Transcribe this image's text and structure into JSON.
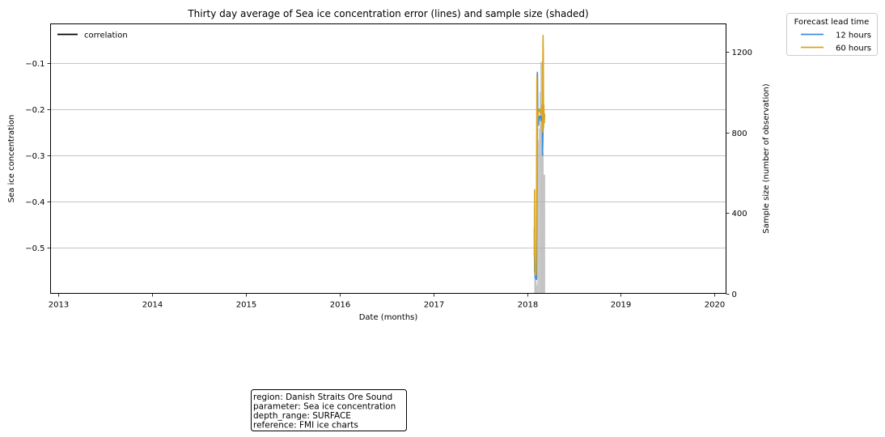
{
  "chart_data": {
    "type": "line",
    "title": "Thirty day average of Sea ice concentration error (lines) and sample size (shaded)",
    "xlabel": "Date (months)",
    "ylabel": "Sea ice concentration",
    "y2label": "Sample size (number of observation)",
    "xlim": [
      "2012-12-01",
      "2020-02-15"
    ],
    "ylim": [
      -0.6,
      -0.015
    ],
    "y2lim": [
      0,
      1340
    ],
    "x_ticks": [
      "2013-01-01",
      "2014-01-01",
      "2015-01-01",
      "2016-01-01",
      "2017-01-01",
      "2018-01-01",
      "2019-01-01",
      "2020-01-01"
    ],
    "x_tick_labels": [
      "2013",
      "2014",
      "2015",
      "2016",
      "2017",
      "2018",
      "2019",
      "2020"
    ],
    "y_ticks": [
      -0.5,
      -0.4,
      -0.3,
      -0.2,
      -0.1
    ],
    "y_tick_labels": [
      "−0.5",
      "−0.4",
      "−0.3",
      "−0.2",
      "−0.1"
    ],
    "y2_ticks": [
      0,
      400,
      800,
      1200
    ],
    "y2_tick_labels": [
      "0",
      "400",
      "800",
      "1200"
    ],
    "grid": "horizontal",
    "correlation_legend": {
      "label": "correlation",
      "color": "#000000",
      "placement": "upper-left"
    },
    "legend": {
      "title": "Forecast lead time",
      "placement": "outside-top-right",
      "entries": [
        {
          "label": "12 hours",
          "color": "#3b8ee0"
        },
        {
          "label": "60 hours",
          "color": "#d9a521"
        }
      ]
    },
    "series": [
      {
        "name": "12 hours",
        "color": "#3b8ee0",
        "x": [
          "2018-01-29",
          "2018-01-30",
          "2018-02-01",
          "2018-02-03",
          "2018-02-05",
          "2018-02-06",
          "2018-02-07",
          "2018-02-08",
          "2018-02-09",
          "2018-02-10",
          "2018-02-12",
          "2018-02-14",
          "2018-02-16",
          "2018-02-18",
          "2018-02-20",
          "2018-02-22",
          "2018-02-24",
          "2018-02-25",
          "2018-02-26",
          "2018-02-28",
          "2018-03-01",
          "2018-03-02",
          "2018-03-03",
          "2018-03-05",
          "2018-03-06",
          "2018-03-07",
          "2018-03-08",
          "2018-03-09",
          "2018-03-10"
        ],
        "y": [
          -0.46,
          -0.55,
          -0.565,
          -0.565,
          -0.57,
          -0.57,
          -0.565,
          -0.35,
          -0.13,
          -0.12,
          -0.23,
          -0.235,
          -0.22,
          -0.215,
          -0.215,
          -0.22,
          -0.225,
          -0.22,
          -0.215,
          -0.22,
          -0.22,
          -0.3,
          -0.275,
          -0.22,
          -0.215,
          -0.21,
          -0.215,
          -0.22,
          -0.21
        ]
      },
      {
        "name": "60 hours",
        "color": "#d9a521",
        "x": [
          "2018-01-29",
          "2018-01-30",
          "2018-01-31",
          "2018-02-01",
          "2018-02-02",
          "2018-02-03",
          "2018-02-04",
          "2018-02-05",
          "2018-02-06",
          "2018-02-07",
          "2018-02-08",
          "2018-02-09",
          "2018-02-10",
          "2018-02-11",
          "2018-02-13",
          "2018-02-15",
          "2018-02-17",
          "2018-02-19",
          "2018-02-21",
          "2018-02-23",
          "2018-02-25",
          "2018-02-26",
          "2018-02-27",
          "2018-02-28",
          "2018-03-01",
          "2018-03-02",
          "2018-03-03",
          "2018-03-04",
          "2018-03-05",
          "2018-03-06",
          "2018-03-07",
          "2018-03-08",
          "2018-03-09",
          "2018-03-10"
        ],
        "y": [
          -0.52,
          -0.375,
          -0.54,
          -0.56,
          -0.55,
          -0.545,
          -0.56,
          -0.555,
          -0.48,
          -0.3,
          -0.13,
          -0.215,
          -0.24,
          -0.22,
          -0.21,
          -0.205,
          -0.2,
          -0.205,
          -0.2,
          -0.21,
          -0.21,
          -0.2,
          -0.195,
          -0.19,
          -0.2,
          -0.25,
          -0.1,
          -0.04,
          -0.08,
          -0.24,
          -0.19,
          -0.215,
          -0.23,
          -0.21
        ]
      }
    ],
    "sample_size": {
      "name": "sample size",
      "color": "#c0c0c0",
      "axis": "right",
      "x": [
        "2018-01-29",
        "2018-02-01",
        "2018-02-04",
        "2018-02-07",
        "2018-02-10",
        "2018-02-13",
        "2018-02-16",
        "2018-02-19",
        "2018-02-22",
        "2018-02-25",
        "2018-02-28",
        "2018-03-03",
        "2018-03-06",
        "2018-03-09"
      ],
      "values": [
        110,
        150,
        60,
        40,
        1080,
        760,
        820,
        1000,
        1150,
        1150,
        1150,
        700,
        590,
        590
      ]
    }
  },
  "info_box": {
    "lines": [
      "region: Danish Straits Ore Sound",
      "parameter: Sea ice concentration",
      "depth_range: SURFACE",
      "reference: FMI ice charts"
    ]
  }
}
